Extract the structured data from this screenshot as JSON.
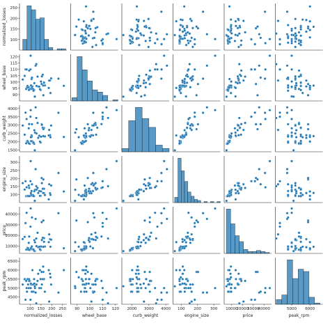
{
  "chart_data": {
    "type": "pairplot",
    "color": "#1f77b4",
    "variables": [
      "normalized_losses",
      "wheel_base",
      "curb_weight",
      "engine_size",
      "price",
      "peak_rpm"
    ],
    "axes": [
      {
        "lim": [
          50,
          270
        ],
        "xticks": [
          100,
          150,
          200,
          250
        ],
        "yticks": [
          100,
          150,
          200,
          250
        ]
      },
      {
        "lim": [
          85,
          122
        ],
        "xticks": [
          90,
          100,
          110,
          120
        ],
        "yticks": [
          90,
          95,
          100,
          105,
          110,
          115,
          120
        ]
      },
      {
        "lim": [
          1400,
          4200
        ],
        "xticks": [
          2000,
          3000,
          4000
        ],
        "yticks": [
          1500,
          2000,
          2500,
          3000,
          3500,
          4000
        ]
      },
      {
        "lim": [
          50,
          340
        ],
        "xticks": [
          100,
          200,
          300
        ],
        "yticks": [
          100,
          150,
          200,
          250,
          300
        ]
      },
      {
        "lim": [
          3000,
          47000
        ],
        "xticks": [
          10000,
          20000,
          30000,
          40000
        ],
        "yticks": [
          10000,
          20000,
          30000,
          40000
        ]
      },
      {
        "lim": [
          4100,
          6700
        ],
        "xticks": [
          5000,
          6000
        ],
        "yticks": [
          4500,
          5000,
          5500,
          6000,
          6500
        ]
      }
    ],
    "histograms": [
      {
        "bins": [
          65,
          85,
          105,
          125,
          145,
          165,
          185,
          205,
          225,
          245,
          265
        ],
        "counts": [
          8,
          33,
          30,
          23,
          24,
          8,
          2,
          0,
          1,
          1
        ]
      },
      {
        "bins": [
          86,
          90,
          94,
          98,
          102,
          106,
          110,
          114,
          118,
          122
        ],
        "counts": [
          3,
          40,
          28,
          18,
          10,
          8,
          5,
          0,
          1
        ]
      },
      {
        "bins": [
          1400,
          1800,
          2200,
          2600,
          3000,
          3400,
          3800,
          4200
        ],
        "counts": [
          3,
          28,
          40,
          30,
          22,
          6,
          3
        ]
      },
      {
        "bins": [
          60,
          80,
          100,
          120,
          140,
          160,
          180,
          200,
          220,
          240,
          260,
          280,
          300,
          320,
          340
        ],
        "counts": [
          5,
          42,
          30,
          20,
          10,
          6,
          3,
          2,
          0,
          1,
          0,
          1,
          0,
          1
        ]
      },
      {
        "bins": [
          5000,
          9000,
          13000,
          17000,
          21000,
          25000,
          29000,
          33000,
          37000,
          41000,
          45000
        ],
        "counts": [
          45,
          30,
          18,
          12,
          4,
          2,
          2,
          3,
          2,
          1
        ]
      },
      {
        "bins": [
          4150,
          4450,
          4750,
          5050,
          5350,
          5650,
          5950,
          6250,
          6550
        ],
        "counts": [
          4,
          8,
          38,
          22,
          30,
          28,
          6,
          1
        ]
      }
    ],
    "rows": [
      [
        122,
        88.6,
        2548,
        130,
        13495,
        5000
      ],
      [
        164,
        99.8,
        2337,
        109,
        13950,
        5500
      ],
      [
        164,
        99.4,
        2824,
        136,
        17450,
        5500
      ],
      [
        158,
        105.8,
        2844,
        136,
        17710,
        5500
      ],
      [
        192,
        101.2,
        2395,
        108,
        16430,
        5800
      ],
      [
        188,
        101.2,
        2710,
        164,
        20970,
        4250
      ],
      [
        121,
        88.4,
        1488,
        61,
        5151,
        5100
      ],
      [
        98,
        94.5,
        1874,
        90,
        6295,
        5400
      ],
      [
        81,
        94.5,
        1909,
        90,
        6575,
        5400
      ],
      [
        118,
        93.7,
        1876,
        90,
        5572,
        5500
      ],
      [
        148,
        93.7,
        1956,
        92,
        6229,
        5500
      ],
      [
        110,
        96.5,
        2024,
        92,
        7295,
        6000
      ],
      [
        145,
        94.3,
        2010,
        92,
        6855,
        6000
      ],
      [
        137,
        96.5,
        2236,
        110,
        8845,
        5800
      ],
      [
        101,
        110.0,
        3505,
        183,
        28248,
        4350
      ],
      [
        78,
        110.0,
        3750,
        183,
        31600,
        4350
      ],
      [
        106,
        102.4,
        2385,
        122,
        7999,
        4800
      ],
      [
        85,
        95.7,
        2015,
        92,
        6695,
        4800
      ],
      [
        107,
        95.7,
        2300,
        98,
        9639,
        4800
      ],
      [
        104,
        94.5,
        2037,
        97,
        7099,
        5200
      ],
      [
        113,
        94.5,
        1938,
        97,
        6649,
        5200
      ],
      [
        150,
        100.4,
        2302,
        120,
        9549,
        5000
      ],
      [
        129,
        96.9,
        2500,
        130,
        9895,
        5200
      ],
      [
        115,
        93.1,
        1950,
        91,
        6695,
        4800
      ],
      [
        93,
        95.9,
        2808,
        156,
        12964,
        5000
      ],
      [
        142,
        96.3,
        2365,
        122,
        9279,
        5000
      ],
      [
        161,
        89.5,
        2756,
        194,
        34028,
        5900
      ],
      [
        153,
        98.4,
        3053,
        203,
        32528,
        5900
      ],
      [
        125,
        113.0,
        4066,
        258,
        35550,
        4750
      ],
      [
        128,
        114.2,
        3430,
        152,
        17075,
        4150
      ],
      [
        103,
        97.3,
        2275,
        109,
        7975,
        5250
      ],
      [
        168,
        97.3,
        2319,
        97,
        9495,
        4800
      ],
      [
        154,
        104.5,
        3016,
        171,
        15645,
        5200
      ],
      [
        74,
        104.9,
        2425,
        131,
        18620,
        5500
      ],
      [
        186,
        95.3,
        2380,
        70,
        13645,
        6000
      ],
      [
        231,
        102.7,
        3740,
        234,
        40960,
        4750
      ],
      [
        119,
        99.1,
        2695,
        121,
        15510,
        5250
      ],
      [
        87,
        96.9,
        2050,
        90,
        8238,
        5500
      ],
      [
        194,
        91.3,
        2275,
        98,
        9298,
        5600
      ],
      [
        65,
        102.0,
        2976,
        171,
        16558,
        5200
      ],
      [
        134,
        104.3,
        3130,
        141,
        22470,
        5400
      ],
      [
        256,
        97.0,
        2290,
        119,
        7895,
        6000
      ],
      [
        90,
        95.7,
        1989,
        92,
        7788,
        5200
      ],
      [
        95,
        109.1,
        3062,
        141,
        18950,
        5400
      ],
      [
        108,
        103.5,
        3055,
        164,
        36880,
        4800
      ],
      [
        197,
        102.9,
        2975,
        156,
        15998,
        5200
      ],
      [
        160,
        97.2,
        2340,
        110,
        9233,
        6200
      ],
      [
        83,
        110.0,
        3366,
        145,
        41315,
        5000
      ],
      [
        102,
        120.9,
        3900,
        308,
        45400,
        5000
      ],
      [
        94,
        93.7,
        1900,
        90,
        6377,
        5500
      ]
    ]
  }
}
